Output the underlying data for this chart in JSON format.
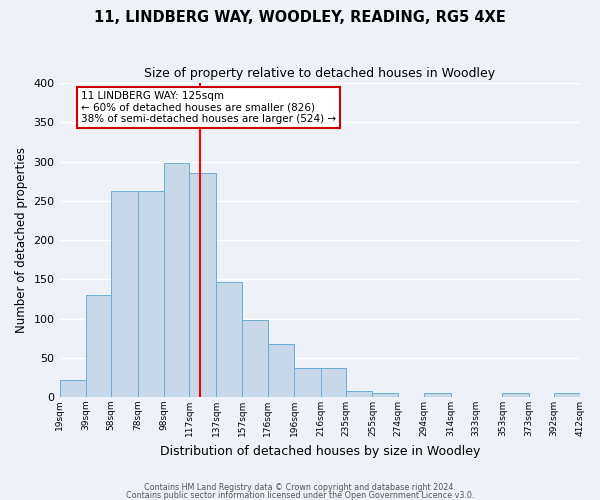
{
  "title": "11, LINDBERG WAY, WOODLEY, READING, RG5 4XE",
  "subtitle": "Size of property relative to detached houses in Woodley",
  "xlabel": "Distribution of detached houses by size in Woodley",
  "ylabel": "Number of detached properties",
  "bar_color": "#c8d8e8",
  "bar_edge_color": "#6baed6",
  "background_color": "#eef2f8",
  "grid_color": "#ffffff",
  "vline_x": 125,
  "vline_color": "red",
  "annotation_title": "11 LINDBERG WAY: 125sqm",
  "annotation_line1": "← 60% of detached houses are smaller (826)",
  "annotation_line2": "38% of semi-detached houses are larger (524) →",
  "annotation_box_color": "#ffffff",
  "annotation_box_edge": "#cc0000",
  "bin_edges": [
    19,
    39,
    58,
    78,
    98,
    117,
    137,
    157,
    176,
    196,
    216,
    235,
    255,
    274,
    294,
    314,
    333,
    353,
    373,
    392,
    412
  ],
  "bin_heights": [
    22,
    130,
    263,
    263,
    298,
    285,
    147,
    98,
    68,
    37,
    37,
    8,
    5,
    0,
    5,
    0,
    0,
    5,
    0,
    5
  ],
  "ylim": [
    0,
    400
  ],
  "xlim": [
    19,
    412
  ],
  "tick_labels": [
    "19sqm",
    "39sqm",
    "58sqm",
    "78sqm",
    "98sqm",
    "117sqm",
    "137sqm",
    "157sqm",
    "176sqm",
    "196sqm",
    "216sqm",
    "235sqm",
    "255sqm",
    "274sqm",
    "294sqm",
    "314sqm",
    "333sqm",
    "353sqm",
    "373sqm",
    "392sqm",
    "412sqm"
  ],
  "footer1": "Contains HM Land Registry data © Crown copyright and database right 2024.",
  "footer2": "Contains public sector information licensed under the Open Government Licence v3.0.",
  "title_fontsize": 10.5,
  "subtitle_fontsize": 9,
  "xlabel_fontsize": 9,
  "ylabel_fontsize": 8.5
}
